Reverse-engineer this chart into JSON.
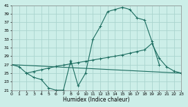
{
  "background_color": "#cceee8",
  "grid_color": "#aad4ce",
  "line_color": "#1a6b5e",
  "xlabel": "Humidex (Indice chaleur)",
  "xlim": [
    0,
    23
  ],
  "ylim": [
    21,
    41
  ],
  "yticks": [
    21,
    23,
    25,
    27,
    29,
    31,
    33,
    35,
    37,
    39,
    41
  ],
  "xticks": [
    0,
    1,
    2,
    3,
    4,
    5,
    6,
    7,
    8,
    9,
    10,
    11,
    12,
    13,
    14,
    15,
    16,
    17,
    18,
    19,
    20,
    21,
    22,
    23
  ],
  "curve1_x": [
    0,
    1,
    2,
    3,
    4,
    5,
    6,
    7,
    8,
    9,
    10,
    11,
    12,
    13,
    14,
    15,
    16,
    17,
    18,
    19,
    20
  ],
  "curve1_y": [
    27,
    26.5,
    25,
    24,
    23.5,
    21.5,
    21,
    21,
    28,
    22,
    25,
    33,
    36,
    39.5,
    40,
    40.5,
    40,
    38,
    37.5,
    32.5,
    27
  ],
  "curve2_x": [
    0,
    23
  ],
  "curve2_y": [
    27,
    25
  ],
  "curve3_x": [
    2,
    3,
    4,
    5,
    6,
    7,
    8,
    9,
    10,
    11,
    12,
    13,
    14,
    15,
    16,
    17,
    18,
    19,
    20,
    21,
    22,
    23
  ],
  "curve3_y": [
    25,
    25.4,
    25.8,
    26.2,
    26.6,
    26.9,
    27.2,
    27.5,
    27.8,
    28.1,
    28.4,
    28.7,
    29.0,
    29.3,
    29.7,
    30.1,
    30.5,
    32,
    28.5,
    26.5,
    25.5,
    25
  ]
}
